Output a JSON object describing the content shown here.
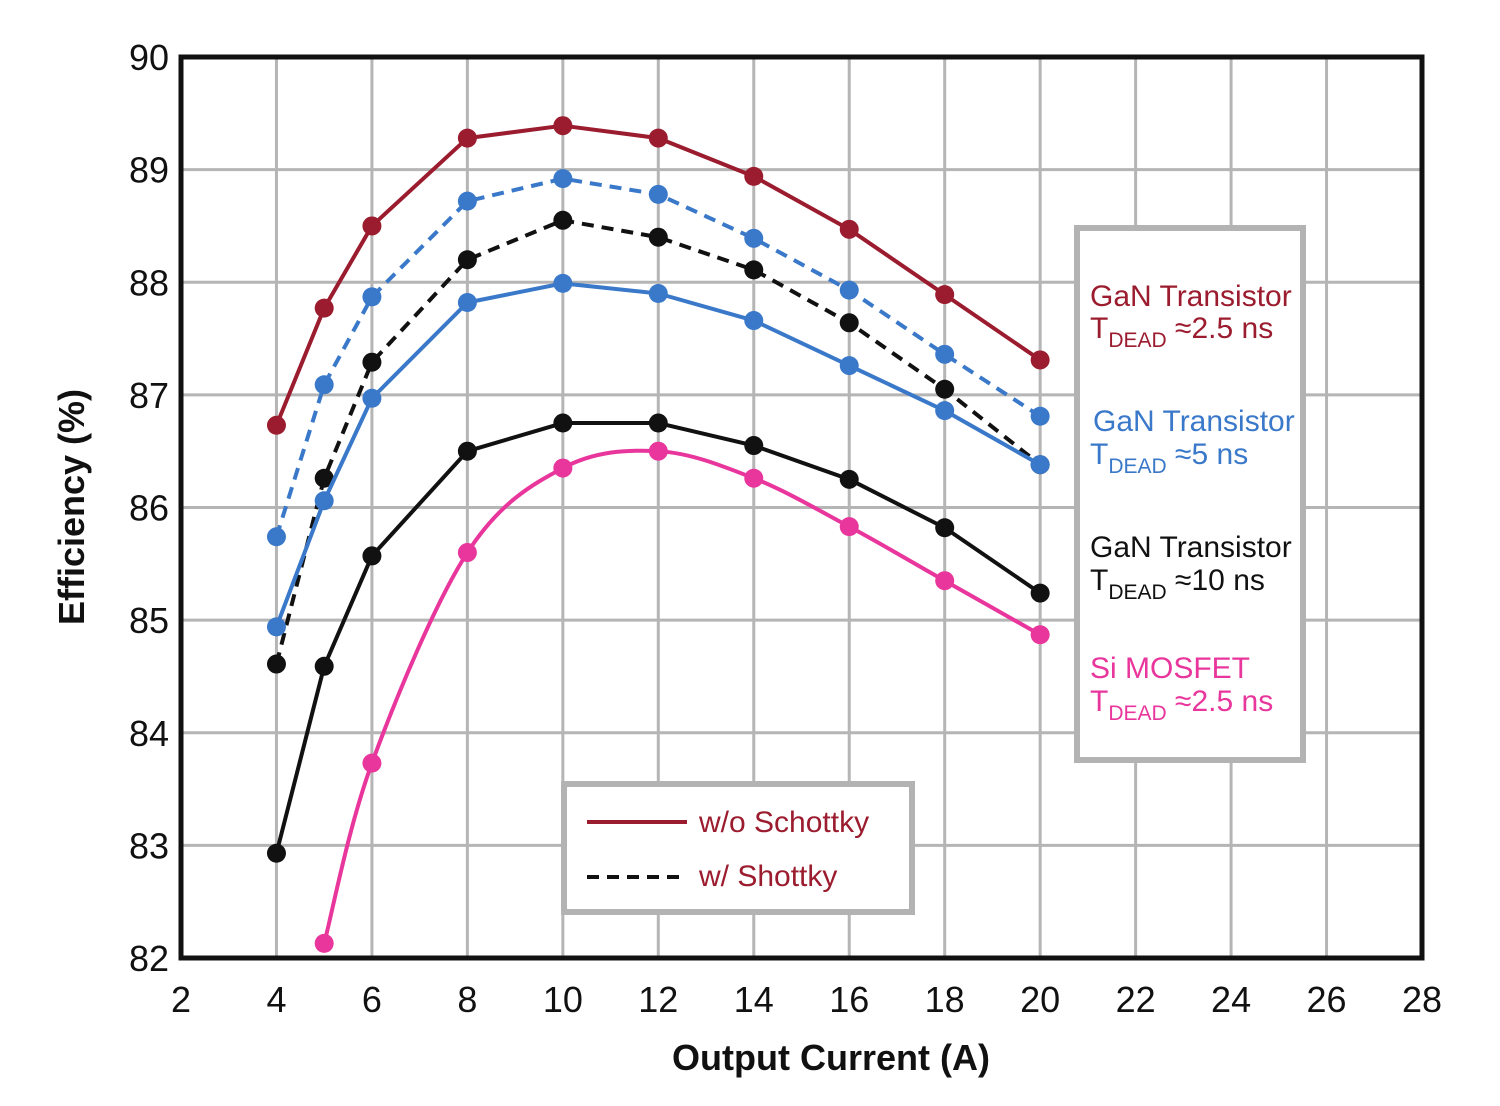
{
  "chart_data": {
    "type": "line",
    "xlabel": "Output Current (A)",
    "ylabel": "Efficiency (%)",
    "xlim": [
      2,
      28
    ],
    "ylim": [
      82,
      90
    ],
    "xticks": [
      2,
      4,
      6,
      8,
      10,
      12,
      14,
      16,
      18,
      20,
      22,
      24,
      26,
      28
    ],
    "yticks": [
      82,
      83,
      84,
      85,
      86,
      87,
      88,
      89,
      90
    ],
    "grid": true,
    "series": [
      {
        "key": "gan25_wo",
        "color": "#9b1c2e",
        "dashed": false,
        "smooth": false,
        "x": [
          4,
          5,
          6,
          8,
          10,
          12,
          14,
          16,
          18,
          20
        ],
        "y": [
          86.73,
          87.77,
          88.5,
          89.28,
          89.39,
          89.28,
          88.94,
          88.47,
          87.89,
          87.31
        ]
      },
      {
        "key": "gan5_w",
        "color": "#3a78c9",
        "dashed": true,
        "smooth": false,
        "x": [
          4,
          5,
          6,
          8,
          10,
          12,
          14,
          16,
          18,
          20
        ],
        "y": [
          85.74,
          87.09,
          87.87,
          88.72,
          88.92,
          88.78,
          88.39,
          87.93,
          87.36,
          86.81
        ]
      },
      {
        "key": "gan10_w",
        "color": "#111111",
        "dashed": true,
        "smooth": false,
        "x": [
          4,
          5,
          6,
          8,
          10,
          12,
          14,
          16,
          18,
          20
        ],
        "y": [
          84.61,
          86.26,
          87.29,
          88.2,
          88.55,
          88.4,
          88.11,
          87.64,
          87.05,
          86.38
        ]
      },
      {
        "key": "gan5_wo",
        "color": "#3a78c9",
        "dashed": false,
        "smooth": false,
        "x": [
          4,
          5,
          6,
          8,
          10,
          12,
          14,
          16,
          18,
          20
        ],
        "y": [
          84.94,
          86.06,
          86.97,
          87.82,
          87.99,
          87.9,
          87.66,
          87.26,
          86.86,
          86.38
        ]
      },
      {
        "key": "gan10_wo",
        "color": "#111111",
        "dashed": false,
        "smooth": false,
        "x": [
          4,
          5,
          6,
          8,
          10,
          12,
          14,
          16,
          18,
          20
        ],
        "y": [
          82.93,
          84.59,
          85.57,
          86.5,
          86.75,
          86.75,
          86.55,
          86.25,
          85.82,
          85.24
        ]
      },
      {
        "key": "simos_wo",
        "color": "#e8369c",
        "dashed": false,
        "smooth": true,
        "x": [
          5,
          6,
          8,
          10,
          12,
          14,
          16,
          18,
          20
        ],
        "y": [
          82.13,
          83.73,
          85.6,
          86.35,
          86.5,
          86.26,
          85.83,
          85.35,
          84.87
        ]
      }
    ]
  },
  "legend_style": {
    "solid": {
      "label": "w/o Schottky",
      "color": "#9b1c2e"
    },
    "dashed": {
      "label": "w/ Shottky",
      "color": "#9b1c2e"
    }
  },
  "legend_devices": [
    {
      "name": "GaN Transistor",
      "t": "T",
      "sub": "DEAD",
      "value": " ≈2.5 ns",
      "color": "#9b1c2e"
    },
    {
      "name": "GaN Transistor",
      "t": "T",
      "sub": "DEAD",
      "value": " ≈5 ns",
      "color": "#3a78c9"
    },
    {
      "name": "GaN Transistor",
      "t": "T",
      "sub": "DEAD",
      "value": " ≈10 ns",
      "color": "#111111"
    },
    {
      "name": "Si MOSFET",
      "t": "T",
      "sub": "DEAD",
      "value": " ≈2.5 ns",
      "color": "#e8369c"
    }
  ]
}
